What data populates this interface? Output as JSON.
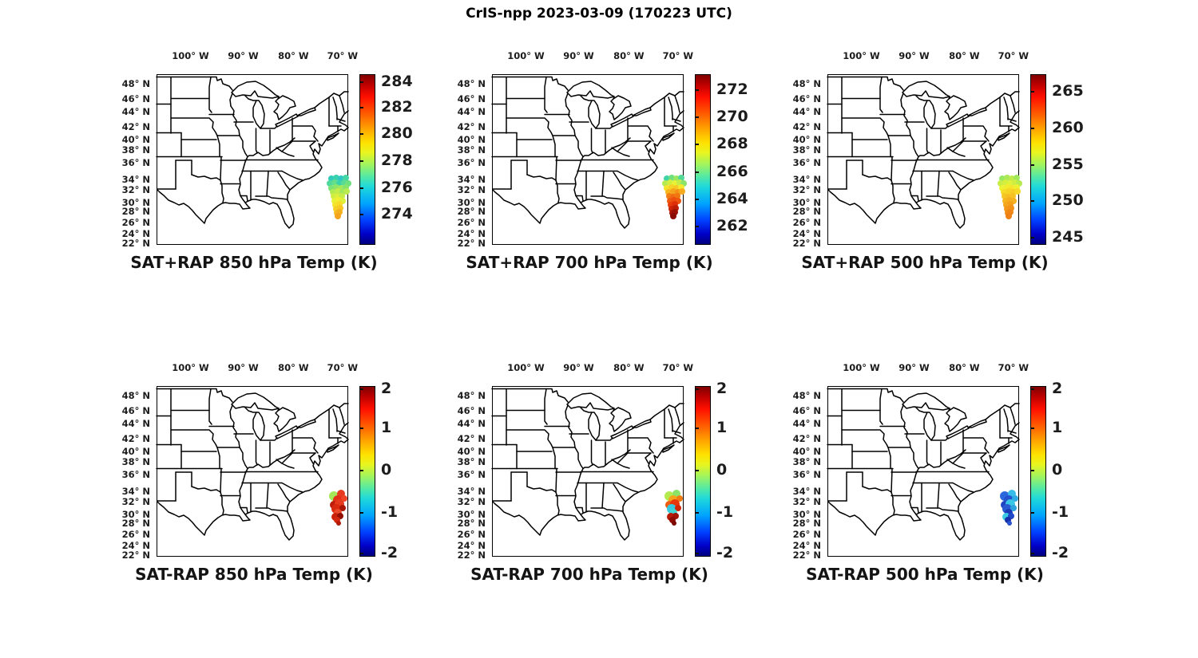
{
  "figure_title": "CrIS-npp 2023-03-09 (170223 UTC)",
  "axes": {
    "lon_ticks": [
      {
        "label": "100° W",
        "pos": 0.177
      },
      {
        "label": "90° W",
        "pos": 0.452
      },
      {
        "label": "80° W",
        "pos": 0.714
      },
      {
        "label": "70° W",
        "pos": 0.97
      }
    ],
    "lat_ticks": [
      {
        "label": "48° N",
        "pos": 0.06
      },
      {
        "label": "46° N",
        "pos": 0.148
      },
      {
        "label": "44° N",
        "pos": 0.222
      },
      {
        "label": "42° N",
        "pos": 0.315
      },
      {
        "label": "40° N",
        "pos": 0.389
      },
      {
        "label": "38° N",
        "pos": 0.449
      },
      {
        "label": "36° N",
        "pos": 0.523
      },
      {
        "label": "34° N",
        "pos": 0.62
      },
      {
        "label": "32° N",
        "pos": 0.68
      },
      {
        "label": "30° N",
        "pos": 0.759
      },
      {
        "label": "28° N",
        "pos": 0.81
      },
      {
        "label": "26° N",
        "pos": 0.875
      },
      {
        "label": "24° N",
        "pos": 0.94
      },
      {
        "label": "22° N",
        "pos": 0.995
      }
    ]
  },
  "colormap": "jet",
  "panels": [
    {
      "id": "sat-plus-rap-850",
      "title": "SAT+RAP 850 hPa Temp (K)",
      "colorbar": {
        "ticks": [
          {
            "label": "284",
            "pos": 0.042
          },
          {
            "label": "282",
            "pos": 0.19
          },
          {
            "label": "280",
            "pos": 0.348
          },
          {
            "label": "278",
            "pos": 0.505
          },
          {
            "label": "276",
            "pos": 0.663
          },
          {
            "label": "274",
            "pos": 0.82
          }
        ]
      },
      "dots": [
        [
          219,
          131,
          4,
          "#30cbbb"
        ],
        [
          225,
          130,
          4,
          "#3ad2ae"
        ],
        [
          231,
          131,
          4,
          "#2fc6c4"
        ],
        [
          237,
          130,
          4,
          "#44d6a4"
        ],
        [
          217,
          137,
          4,
          "#4fd99c"
        ],
        [
          223,
          136,
          4,
          "#63de8b"
        ],
        [
          229,
          137,
          4,
          "#3bd3ab"
        ],
        [
          235,
          136,
          4,
          "#58db94"
        ],
        [
          240,
          137,
          4,
          "#6ee07f"
        ],
        [
          219,
          143,
          4,
          "#7ce275"
        ],
        [
          225,
          142,
          4,
          "#8fe567"
        ],
        [
          231,
          143,
          4,
          "#a3e85b"
        ],
        [
          237,
          142,
          4,
          "#86e46d"
        ],
        [
          221,
          148,
          4,
          "#b1ea52"
        ],
        [
          227,
          147,
          4,
          "#c2ec49"
        ],
        [
          233,
          148,
          4,
          "#9fe75d"
        ],
        [
          238,
          147,
          4,
          "#b8eb4e"
        ],
        [
          222,
          153,
          4,
          "#cfee42"
        ],
        [
          227,
          154,
          4,
          "#dcf03c"
        ],
        [
          232,
          153,
          4,
          "#c6ed46"
        ],
        [
          223,
          159,
          4,
          "#e8f136"
        ],
        [
          228,
          158,
          4,
          "#f0ee30"
        ],
        [
          233,
          159,
          4,
          "#ddf03b"
        ],
        [
          224,
          164,
          4,
          "#f4e42c"
        ],
        [
          229,
          163,
          4,
          "#f6dc29"
        ],
        [
          225,
          169,
          4,
          "#f6d026"
        ],
        [
          230,
          168,
          4,
          "#f7c724"
        ],
        [
          226,
          174,
          4,
          "#f6bb21"
        ],
        [
          229,
          173,
          4,
          "#f5b01f"
        ],
        [
          227,
          178,
          4,
          "#f3a41c"
        ]
      ]
    },
    {
      "id": "sat-plus-rap-700",
      "title": "SAT+RAP 700 hPa Temp (K)",
      "colorbar": {
        "ticks": [
          {
            "label": "272",
            "pos": 0.087
          },
          {
            "label": "270",
            "pos": 0.248
          },
          {
            "label": "268",
            "pos": 0.408
          },
          {
            "label": "266",
            "pos": 0.569
          },
          {
            "label": "264",
            "pos": 0.729
          },
          {
            "label": "262",
            "pos": 0.89
          }
        ]
      },
      "dots": [
        [
          219,
          131,
          4,
          "#3ed4a8"
        ],
        [
          225,
          130,
          4,
          "#6ee07f"
        ],
        [
          231,
          131,
          4,
          "#9be85f"
        ],
        [
          237,
          130,
          4,
          "#52d99a"
        ],
        [
          217,
          137,
          4,
          "#b4ea50"
        ],
        [
          223,
          136,
          4,
          "#d2ef40"
        ],
        [
          229,
          137,
          4,
          "#e9f135"
        ],
        [
          235,
          136,
          4,
          "#c4ec48"
        ],
        [
          240,
          137,
          4,
          "#8ce369"
        ],
        [
          219,
          143,
          4,
          "#f6e22b"
        ],
        [
          225,
          142,
          4,
          "#f6d427"
        ],
        [
          231,
          143,
          4,
          "#f7c824"
        ],
        [
          237,
          142,
          4,
          "#f4ea2e"
        ],
        [
          221,
          148,
          4,
          "#f6b620"
        ],
        [
          227,
          147,
          4,
          "#f5a51d"
        ],
        [
          233,
          148,
          4,
          "#f49116"
        ],
        [
          238,
          147,
          4,
          "#f6ac1e"
        ],
        [
          222,
          153,
          4,
          "#f37d15"
        ],
        [
          227,
          154,
          4,
          "#f16a12"
        ],
        [
          232,
          153,
          4,
          "#f2760f"
        ],
        [
          223,
          159,
          4,
          "#ef5a0f"
        ],
        [
          228,
          158,
          4,
          "#ed4d0d"
        ],
        [
          233,
          159,
          4,
          "#ee550e"
        ],
        [
          224,
          164,
          4,
          "#e93c0b"
        ],
        [
          229,
          163,
          4,
          "#df2f09"
        ],
        [
          225,
          169,
          4,
          "#cc2407"
        ],
        [
          230,
          168,
          4,
          "#bd1d05"
        ],
        [
          226,
          174,
          4,
          "#a91504"
        ],
        [
          229,
          173,
          4,
          "#9b1003"
        ],
        [
          227,
          178,
          4,
          "#8a0b02"
        ]
      ]
    },
    {
      "id": "sat-plus-rap-500",
      "title": "SAT+RAP 500 hPa Temp (K)",
      "colorbar": {
        "ticks": [
          {
            "label": "265",
            "pos": 0.1
          },
          {
            "label": "260",
            "pos": 0.313
          },
          {
            "label": "255",
            "pos": 0.527
          },
          {
            "label": "250",
            "pos": 0.74
          },
          {
            "label": "245",
            "pos": 0.954
          }
        ]
      },
      "dots": [
        [
          219,
          131,
          4,
          "#97e761"
        ],
        [
          225,
          130,
          4,
          "#abe956"
        ],
        [
          231,
          131,
          4,
          "#bdec4b"
        ],
        [
          237,
          130,
          4,
          "#a2e85c"
        ],
        [
          217,
          137,
          4,
          "#c8ed46"
        ],
        [
          223,
          136,
          4,
          "#d5ef3f"
        ],
        [
          229,
          137,
          4,
          "#e1f139"
        ],
        [
          235,
          136,
          4,
          "#cfee42"
        ],
        [
          240,
          137,
          4,
          "#b6ea4f"
        ],
        [
          219,
          143,
          4,
          "#ecf233"
        ],
        [
          225,
          142,
          4,
          "#f2ec2e"
        ],
        [
          231,
          143,
          4,
          "#f6e42b"
        ],
        [
          237,
          142,
          4,
          "#eef031"
        ],
        [
          221,
          148,
          4,
          "#f6dc29"
        ],
        [
          227,
          147,
          4,
          "#f6d426"
        ],
        [
          233,
          148,
          4,
          "#f7cc24"
        ],
        [
          238,
          147,
          4,
          "#f6d827"
        ],
        [
          222,
          153,
          4,
          "#f6c622"
        ],
        [
          227,
          154,
          4,
          "#f6be21"
        ],
        [
          232,
          153,
          4,
          "#f6c223"
        ],
        [
          223,
          159,
          4,
          "#f5b61f"
        ],
        [
          228,
          158,
          4,
          "#f5ae1e"
        ],
        [
          233,
          159,
          4,
          "#f5b220"
        ],
        [
          224,
          164,
          4,
          "#f4a61c"
        ],
        [
          229,
          163,
          4,
          "#f4a01b"
        ],
        [
          225,
          169,
          4,
          "#f3981a"
        ],
        [
          230,
          168,
          4,
          "#f29218"
        ],
        [
          226,
          174,
          4,
          "#f18c17"
        ],
        [
          229,
          173,
          4,
          "#f08616"
        ],
        [
          227,
          178,
          4,
          "#ef8015"
        ]
      ]
    },
    {
      "id": "sat-minus-rap-850",
      "title": "SAT-RAP 850 hPa Temp (K)",
      "colorbar": {
        "ticks": [
          {
            "label": "2",
            "pos": 0.012
          },
          {
            "label": "1",
            "pos": 0.245
          },
          {
            "label": "0",
            "pos": 0.49
          },
          {
            "label": "-1",
            "pos": 0.74
          },
          {
            "label": "-2",
            "pos": 0.975
          }
        ]
      },
      "dots": [
        [
          222,
          138,
          6,
          "#a6e757"
        ],
        [
          231,
          135,
          5,
          "#e63b1f"
        ],
        [
          227,
          143,
          6,
          "#e02f16"
        ],
        [
          235,
          141,
          4,
          "#ef4526"
        ],
        [
          222,
          149,
          5,
          "#bd1d09"
        ],
        [
          229,
          148,
          6,
          "#e63a1e"
        ],
        [
          225,
          154,
          6,
          "#d9290f"
        ],
        [
          233,
          153,
          4,
          "#a81505"
        ],
        [
          227,
          159,
          5,
          "#ea4a2a"
        ],
        [
          224,
          164,
          5,
          "#c92208"
        ],
        [
          230,
          163,
          4,
          "#930e03"
        ],
        [
          226,
          168,
          4,
          "#d42710"
        ],
        [
          228,
          172,
          3,
          "#b51a06"
        ]
      ]
    },
    {
      "id": "sat-minus-rap-700",
      "title": "SAT-RAP 700 hPa Temp (K)",
      "colorbar": {
        "ticks": [
          {
            "label": "2",
            "pos": 0.012
          },
          {
            "label": "1",
            "pos": 0.245
          },
          {
            "label": "0",
            "pos": 0.49
          },
          {
            "label": "-1",
            "pos": 0.74
          },
          {
            "label": "-2",
            "pos": 0.975
          }
        ]
      },
      "dots": [
        [
          222,
          138,
          6,
          "#b2ea50"
        ],
        [
          231,
          135,
          5,
          "#8ce369"
        ],
        [
          227,
          143,
          6,
          "#f4a41c"
        ],
        [
          235,
          141,
          4,
          "#f07b14"
        ],
        [
          222,
          149,
          5,
          "#ee5d10"
        ],
        [
          229,
          148,
          6,
          "#e6380c"
        ],
        [
          225,
          154,
          6,
          "#35c9e2"
        ],
        [
          233,
          153,
          4,
          "#d02708"
        ],
        [
          227,
          159,
          5,
          "#41d4d2"
        ],
        [
          224,
          164,
          5,
          "#b91c05"
        ],
        [
          230,
          163,
          4,
          "#a11303"
        ],
        [
          226,
          168,
          4,
          "#8d0c02"
        ],
        [
          228,
          172,
          3,
          "#7c0801"
        ]
      ]
    },
    {
      "id": "sat-minus-rap-500",
      "title": "SAT-RAP 500 hPa Temp (K)",
      "colorbar": {
        "ticks": [
          {
            "label": "2",
            "pos": 0.012
          },
          {
            "label": "1",
            "pos": 0.245
          },
          {
            "label": "0",
            "pos": 0.49
          },
          {
            "label": "-1",
            "pos": 0.74
          },
          {
            "label": "-2",
            "pos": 0.975
          }
        ]
      },
      "dots": [
        [
          222,
          138,
          6,
          "#2a66dc"
        ],
        [
          231,
          135,
          5,
          "#38bce9"
        ],
        [
          227,
          143,
          6,
          "#2451ce"
        ],
        [
          235,
          141,
          4,
          "#30abe3"
        ],
        [
          222,
          149,
          5,
          "#1f44c2"
        ],
        [
          229,
          148,
          6,
          "#3ac6e6"
        ],
        [
          225,
          154,
          6,
          "#2858d2"
        ],
        [
          233,
          153,
          4,
          "#2ea2de"
        ],
        [
          227,
          159,
          5,
          "#1b3ab6"
        ],
        [
          224,
          164,
          5,
          "#3ccae2"
        ],
        [
          230,
          163,
          4,
          "#2148c6"
        ],
        [
          226,
          168,
          4,
          "#1630aa"
        ],
        [
          228,
          172,
          3,
          "#2854ce"
        ]
      ]
    }
  ],
  "chart_data": {
    "type": "scatter",
    "layout": "2 rows x 3 columns of geographic scatter panels over the eastern United States",
    "map_extent": {
      "lon_degW": [
        107,
        68
      ],
      "lat_degN": [
        22,
        49
      ]
    },
    "observation_cluster_location": {
      "lon_degW": [
        68,
        72
      ],
      "lat_degN": [
        24,
        32
      ],
      "note": "CrIS-npp sounding footprints offshore of the US southeast coast, straddling the right map border"
    },
    "title": "CrIS-npp 2023-03-09 (170223 UTC)",
    "panels": [
      {
        "title": "SAT+RAP 850 hPa Temp (K)",
        "colorbar_ticks": [
          274,
          276,
          278,
          280,
          282,
          284
        ],
        "colorbar_range": [
          272,
          285
        ],
        "cluster_values_K": "about 276 K (cyan-green) at the north end grading to about 280 K (yellow-orange) at the south end"
      },
      {
        "title": "SAT+RAP 700 hPa Temp (K)",
        "colorbar_ticks": [
          262,
          264,
          266,
          268,
          270,
          272
        ],
        "colorbar_range": [
          261,
          273
        ],
        "cluster_values_K": "about 266 K (green) at the north end grading to about 272 K (dark red) at the south end"
      },
      {
        "title": "SAT+RAP 500 hPa Temp (K)",
        "colorbar_ticks": [
          245,
          250,
          255,
          260,
          265
        ],
        "colorbar_range": [
          244,
          267
        ],
        "cluster_values_K": "about 257 K (yellow-green) at the north end grading to about 261 K (orange) at the south end"
      },
      {
        "title": "SAT-RAP 850 hPa Temp (K)",
        "colorbar_ticks": [
          -2,
          -1,
          0,
          1,
          2
        ],
        "colorbar_range": [
          -2,
          2
        ],
        "cluster_values_K": "mostly +1 to +2 K (red/dark red) with an isolated value near +0.3 K (yellow-green)"
      },
      {
        "title": "SAT-RAP 700 hPa Temp (K)",
        "colorbar_ticks": [
          -2,
          -1,
          0,
          1,
          2
        ],
        "colorbar_range": [
          -2,
          2
        ],
        "cluster_values_K": "mixed +0.5 to +2 K (orange/red/dark red) with thin cyan bands near -0.7 K"
      },
      {
        "title": "SAT-RAP 500 hPa Temp (K)",
        "colorbar_ticks": [
          -2,
          -1,
          0,
          1,
          2
        ],
        "colorbar_range": [
          -2,
          2
        ],
        "cluster_values_K": "about -0.5 to -1.5 K (cyan and blue)"
      }
    ]
  }
}
